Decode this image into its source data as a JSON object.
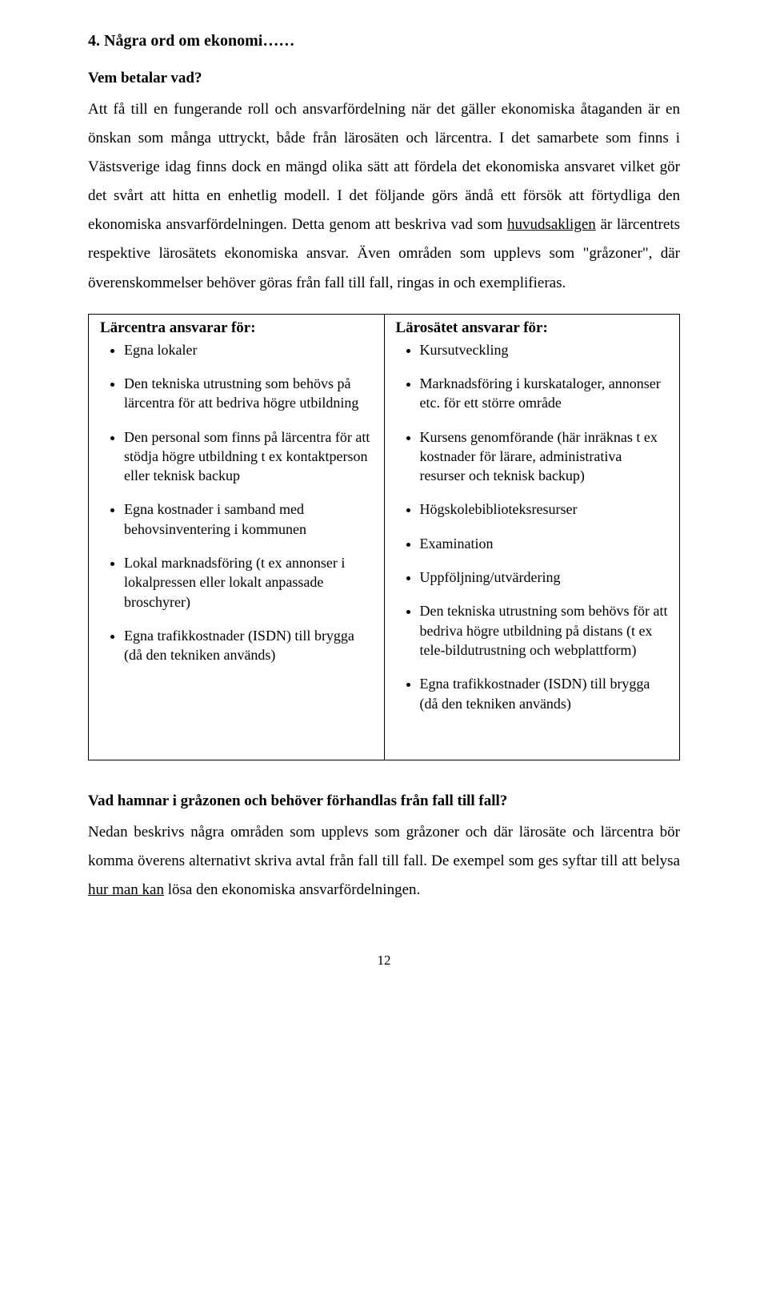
{
  "heading": "4.  Några ord om ekonomi……",
  "subheading": "Vem betalar vad?",
  "para1_a": "Att få till en fungerande roll och ansvarfördelning när det gäller ekonomiska åtaganden är en önskan som många uttryckt, både från lärosäten och lärcentra. I det samarbete som finns i Västsverige idag finns dock en mängd olika sätt att fördela det ekonomiska ansvaret vilket gör det svårt att hitta en enhetlig modell. I det följande görs ändå ett försök att förtydliga den ekonomiska ansvarfördelningen. Detta genom att beskriva vad som ",
  "para1_underlined": "huvudsakligen",
  "para1_b": " är lärcentrets respektive lärosätets ekonomiska ansvar. Även områden som upplevs som \"gråzoner\", där överenskommelser behöver göras från fall till fall, ringas in och exemplifieras.",
  "table": {
    "left": {
      "title": "Lärcentra ansvarar för:",
      "items": [
        "Egna lokaler",
        "Den tekniska utrustning som behövs på lärcentra för att bedriva högre utbildning",
        "Den personal som finns på lärcentra för att stödja högre utbildning t ex kontaktperson eller teknisk backup",
        "Egna kostnader i samband med behovsinventering i kommunen",
        "Lokal marknadsföring (t ex annonser i lokalpressen eller lokalt anpassade broschyrer)",
        "Egna trafikkostnader (ISDN) till brygga (då den tekniken används)"
      ]
    },
    "right": {
      "title": "Lärosätet ansvarar för:",
      "items": [
        "Kursutveckling",
        "Marknadsföring i kurskataloger, annonser etc. för ett större område",
        "Kursens genomförande (här inräknas t ex kostnader för lärare, administrativa resurser och teknisk backup)",
        "Högskolebiblioteksresurser",
        "Examination",
        "Uppföljning/utvärdering",
        "Den tekniska utrustning som behövs för att bedriva högre utbildning på distans (t ex tele-bildutrustning och webplattform)",
        "Egna trafikkostnader (ISDN) till brygga (då den tekniken används)"
      ]
    }
  },
  "q_heading": "Vad hamnar i gråzonen och behöver förhandlas från fall till fall?",
  "para2_a": "Nedan beskrivs några områden som upplevs som gråzoner och där lärosäte och lärcentra bör komma överens alternativt skriva avtal från fall till fall. De exempel som ges syftar till att belysa ",
  "para2_underlined": "hur man kan",
  "para2_b": " lösa den ekonomiska ansvarfördelningen.",
  "page_number": "12"
}
